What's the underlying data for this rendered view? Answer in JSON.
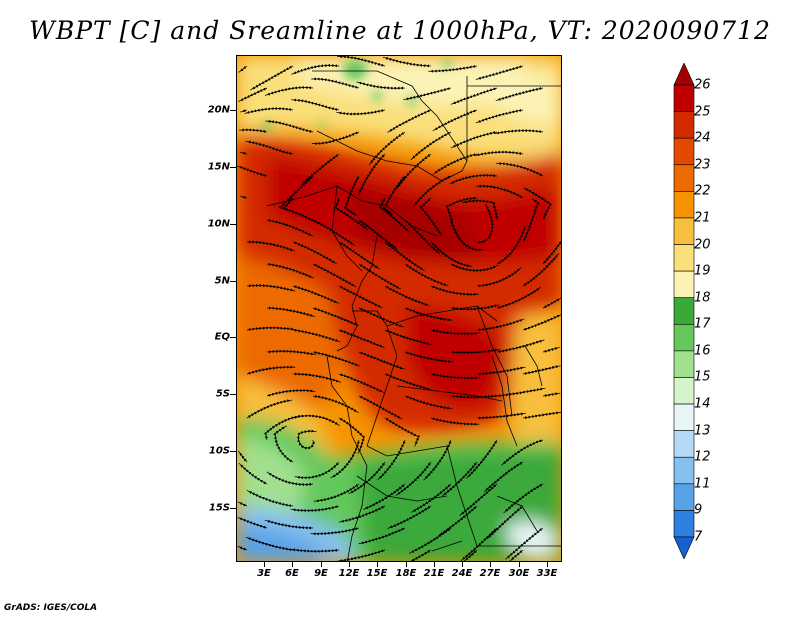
{
  "title": "WBPT [C] and Sreamline at 1000hPa, VT: 2020090712",
  "footer": "GrADS: IGES/COLA",
  "latitude_labels": [
    "20N",
    "15N",
    "10N",
    "5N",
    "EQ",
    "5S",
    "10S",
    "15S"
  ],
  "longitude_labels": [
    "3E",
    "6E",
    "9E",
    "12E",
    "15E",
    "18E",
    "21E",
    "24E",
    "27E",
    "30E",
    "33E"
  ],
  "colorbar": {
    "labels": [
      "26",
      "25",
      "24",
      "23",
      "22",
      "21",
      "20",
      "19",
      "18",
      "17",
      "16",
      "15",
      "14",
      "13",
      "12",
      "11",
      "9",
      "7"
    ],
    "colors": [
      "#a50000",
      "#c00000",
      "#d42a00",
      "#e34a00",
      "#ec6a00",
      "#f59400",
      "#f8bf3e",
      "#fadf7a",
      "#fbf3b5",
      "#3ba93a",
      "#64c85b",
      "#a0e08e",
      "#d6f4cb",
      "#e8f6f8",
      "#b6daf6",
      "#86c0ef",
      "#57a2e6",
      "#2d7fe0",
      "#1560d2"
    ]
  },
  "colors": {
    "dark_red": "#a50000",
    "red": "#d42a00",
    "orange": "#ec6a00",
    "light_orange": "#f8bf3e",
    "yellow": "#fadf7a",
    "pale_yellow": "#fbf3b5",
    "green": "#64c85b",
    "light_green": "#a0e08e",
    "light_blue": "#b6daf6",
    "blue": "#86c0ef"
  }
}
